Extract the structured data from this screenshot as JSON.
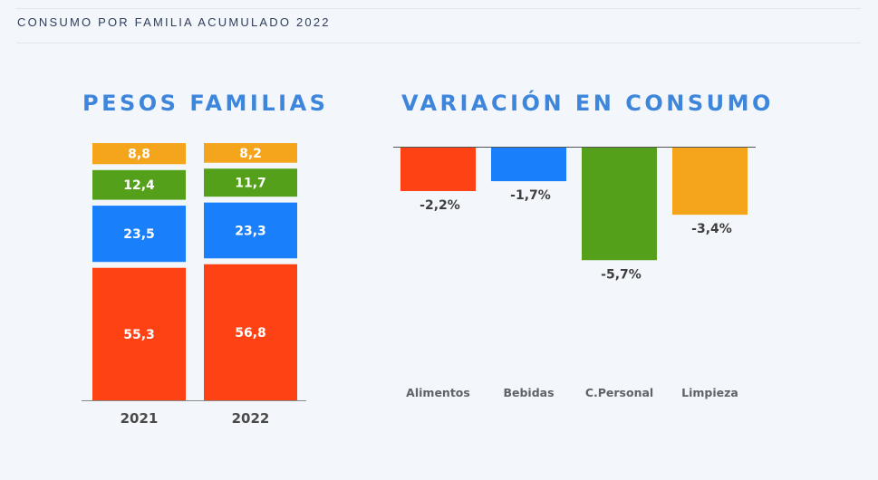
{
  "header": {
    "title": "CONSUMO POR FAMILIA ACUMULADO 2022"
  },
  "colors": {
    "Alimentos": "#ff4213",
    "Bebidas": "#1a7ffa",
    "C.Personal": "#55a01a",
    "Limpieza": "#f5a51c"
  },
  "chart_data": [
    {
      "type": "bar",
      "stacked": true,
      "title": "PESOS FAMILIAS",
      "categories": [
        "2021",
        "2022"
      ],
      "series": [
        {
          "name": "Alimentos",
          "values": [
            55.3,
            56.8
          ],
          "labels": [
            "55,3",
            "56,8"
          ]
        },
        {
          "name": "Bebidas",
          "values": [
            23.5,
            23.3
          ],
          "labels": [
            "23,5",
            "23,3"
          ]
        },
        {
          "name": "C.Personal",
          "values": [
            12.4,
            11.7
          ],
          "labels": [
            "12,4",
            "11,7"
          ]
        },
        {
          "name": "Limpieza",
          "values": [
            8.8,
            8.2
          ],
          "labels": [
            "8,8",
            "8,2"
          ]
        }
      ],
      "ylim": [
        0,
        100
      ],
      "grid": false,
      "legend": "none"
    },
    {
      "type": "bar",
      "title": "VARIACIÓN EN CONSUMO",
      "categories": [
        "Alimentos",
        "Bebidas",
        "C.Personal",
        "Limpieza"
      ],
      "values": [
        -2.2,
        -1.7,
        -5.7,
        -3.4
      ],
      "labels": [
        "-2,2%",
        "-1,7%",
        "-5,7%",
        "-3,4%"
      ],
      "unit": "%",
      "ylim": [
        -10,
        0
      ],
      "grid": false,
      "legend": "none"
    }
  ]
}
